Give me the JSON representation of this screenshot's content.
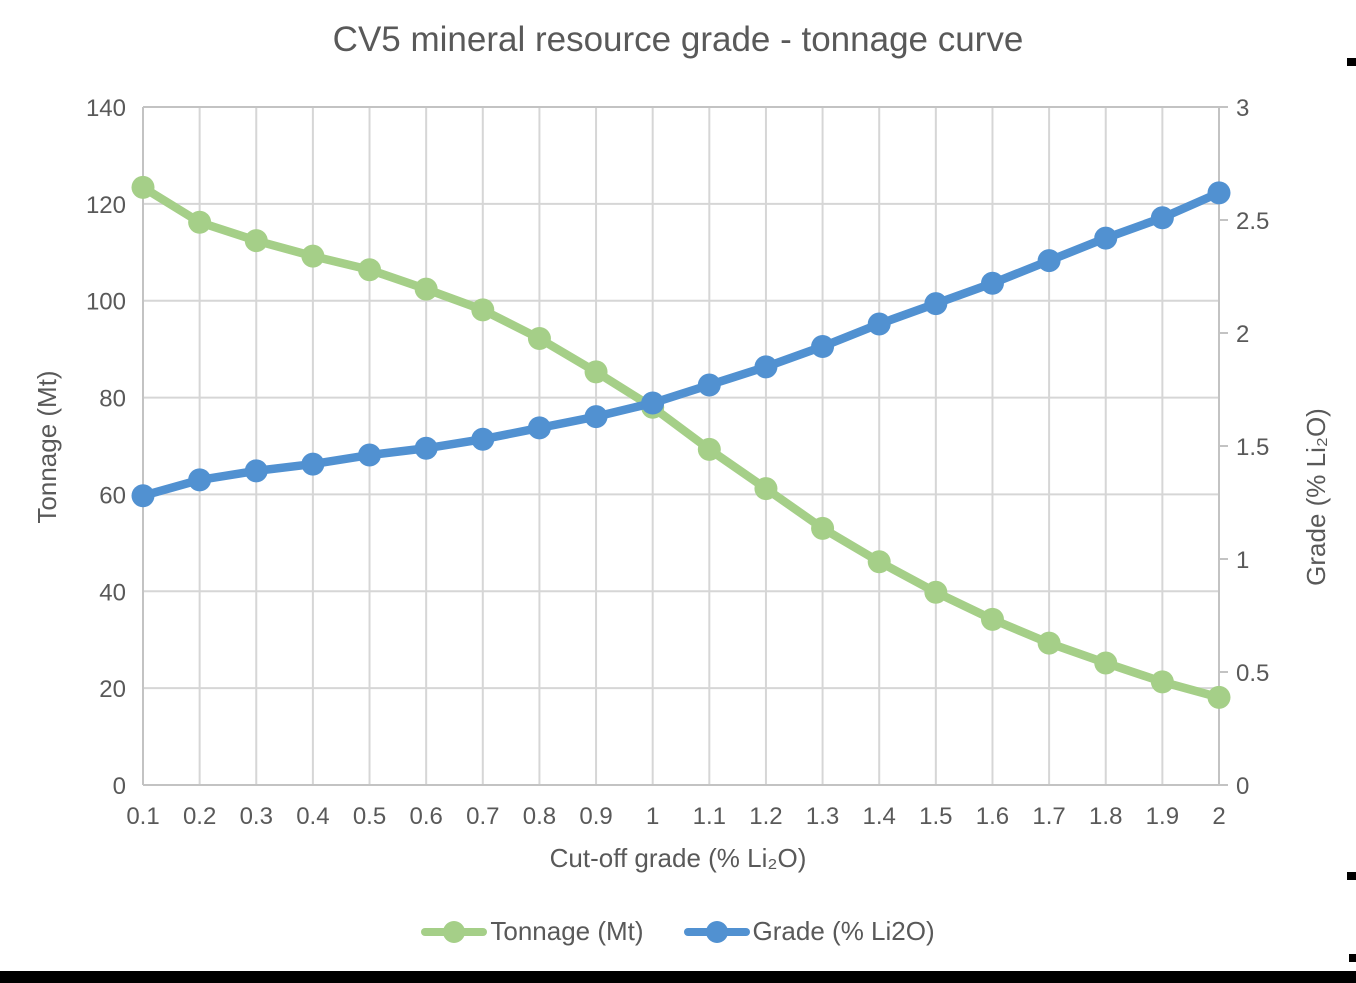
{
  "page": {
    "title": "CV5 mineral resource grade - tonnage curve"
  },
  "chart_data": {
    "type": "line",
    "title": "CV5 mineral resource grade - tonnage curve",
    "xlabel": "Cut-off grade (% Li₂O)",
    "ylabel_left": "Tonnage (Mt)",
    "ylabel_right": "Grade (% Li₂O)",
    "x": [
      0.1,
      0.2,
      0.3,
      0.4,
      0.5,
      0.6,
      0.7,
      0.8,
      0.9,
      1.0,
      1.1,
      1.2,
      1.3,
      1.4,
      1.5,
      1.6,
      1.7,
      1.8,
      1.9,
      2.0
    ],
    "x_tick_labels": [
      "0.1",
      "0.2",
      "0.3",
      "0.4",
      "0.5",
      "0.6",
      "0.7",
      "0.8",
      "0.9",
      "1",
      "1.1",
      "1.2",
      "1.3",
      "1.4",
      "1.5",
      "1.6",
      "1.7",
      "1.8",
      "1.9",
      "2"
    ],
    "series": [
      {
        "name": "Tonnage (Mt)",
        "axis": "left",
        "color": "#a5cf88",
        "values": [
          123.4,
          116.2,
          112.4,
          109.2,
          106.4,
          102.4,
          98.1,
          92.2,
          85.3,
          78.0,
          69.3,
          61.2,
          53.0,
          46.1,
          39.8,
          34.2,
          29.3,
          25.2,
          21.3,
          18.1
        ]
      },
      {
        "name": "Grade (% Li2O)",
        "axis": "right",
        "color": "#5191d1",
        "values": [
          1.28,
          1.35,
          1.39,
          1.42,
          1.46,
          1.49,
          1.53,
          1.58,
          1.63,
          1.69,
          1.77,
          1.85,
          1.94,
          2.04,
          2.13,
          2.22,
          2.32,
          2.42,
          2.51,
          2.62
        ]
      }
    ],
    "ylim_left": [
      0,
      140
    ],
    "ylim_right": [
      0,
      3
    ],
    "y_left_ticks": [
      0,
      20,
      40,
      60,
      80,
      100,
      120,
      140
    ],
    "y_left_tick_labels": [
      "0",
      "20",
      "40",
      "60",
      "80",
      "100",
      "120",
      "140"
    ],
    "y_right_ticks": [
      0,
      0.5,
      1,
      1.5,
      2,
      2.5,
      3
    ],
    "y_right_tick_labels": [
      "0",
      "0.5",
      "1",
      "1.5",
      "2",
      "2.5",
      "3"
    ],
    "grid": true,
    "legend_position": "bottom"
  },
  "legend": {
    "items": [
      {
        "label": "Tonnage (Mt)",
        "color": "#a5cf88"
      },
      {
        "label": "Grade (% Li2O)",
        "color": "#5191d1"
      }
    ]
  },
  "colors": {
    "title_text": "#595959",
    "axis_text": "#595959",
    "gridline": "#d6d6d6",
    "axis_line": "#c3c3c3",
    "tonnage_series": "#a5cf88",
    "grade_series": "#5191d1",
    "page_artifact": "#000000"
  }
}
